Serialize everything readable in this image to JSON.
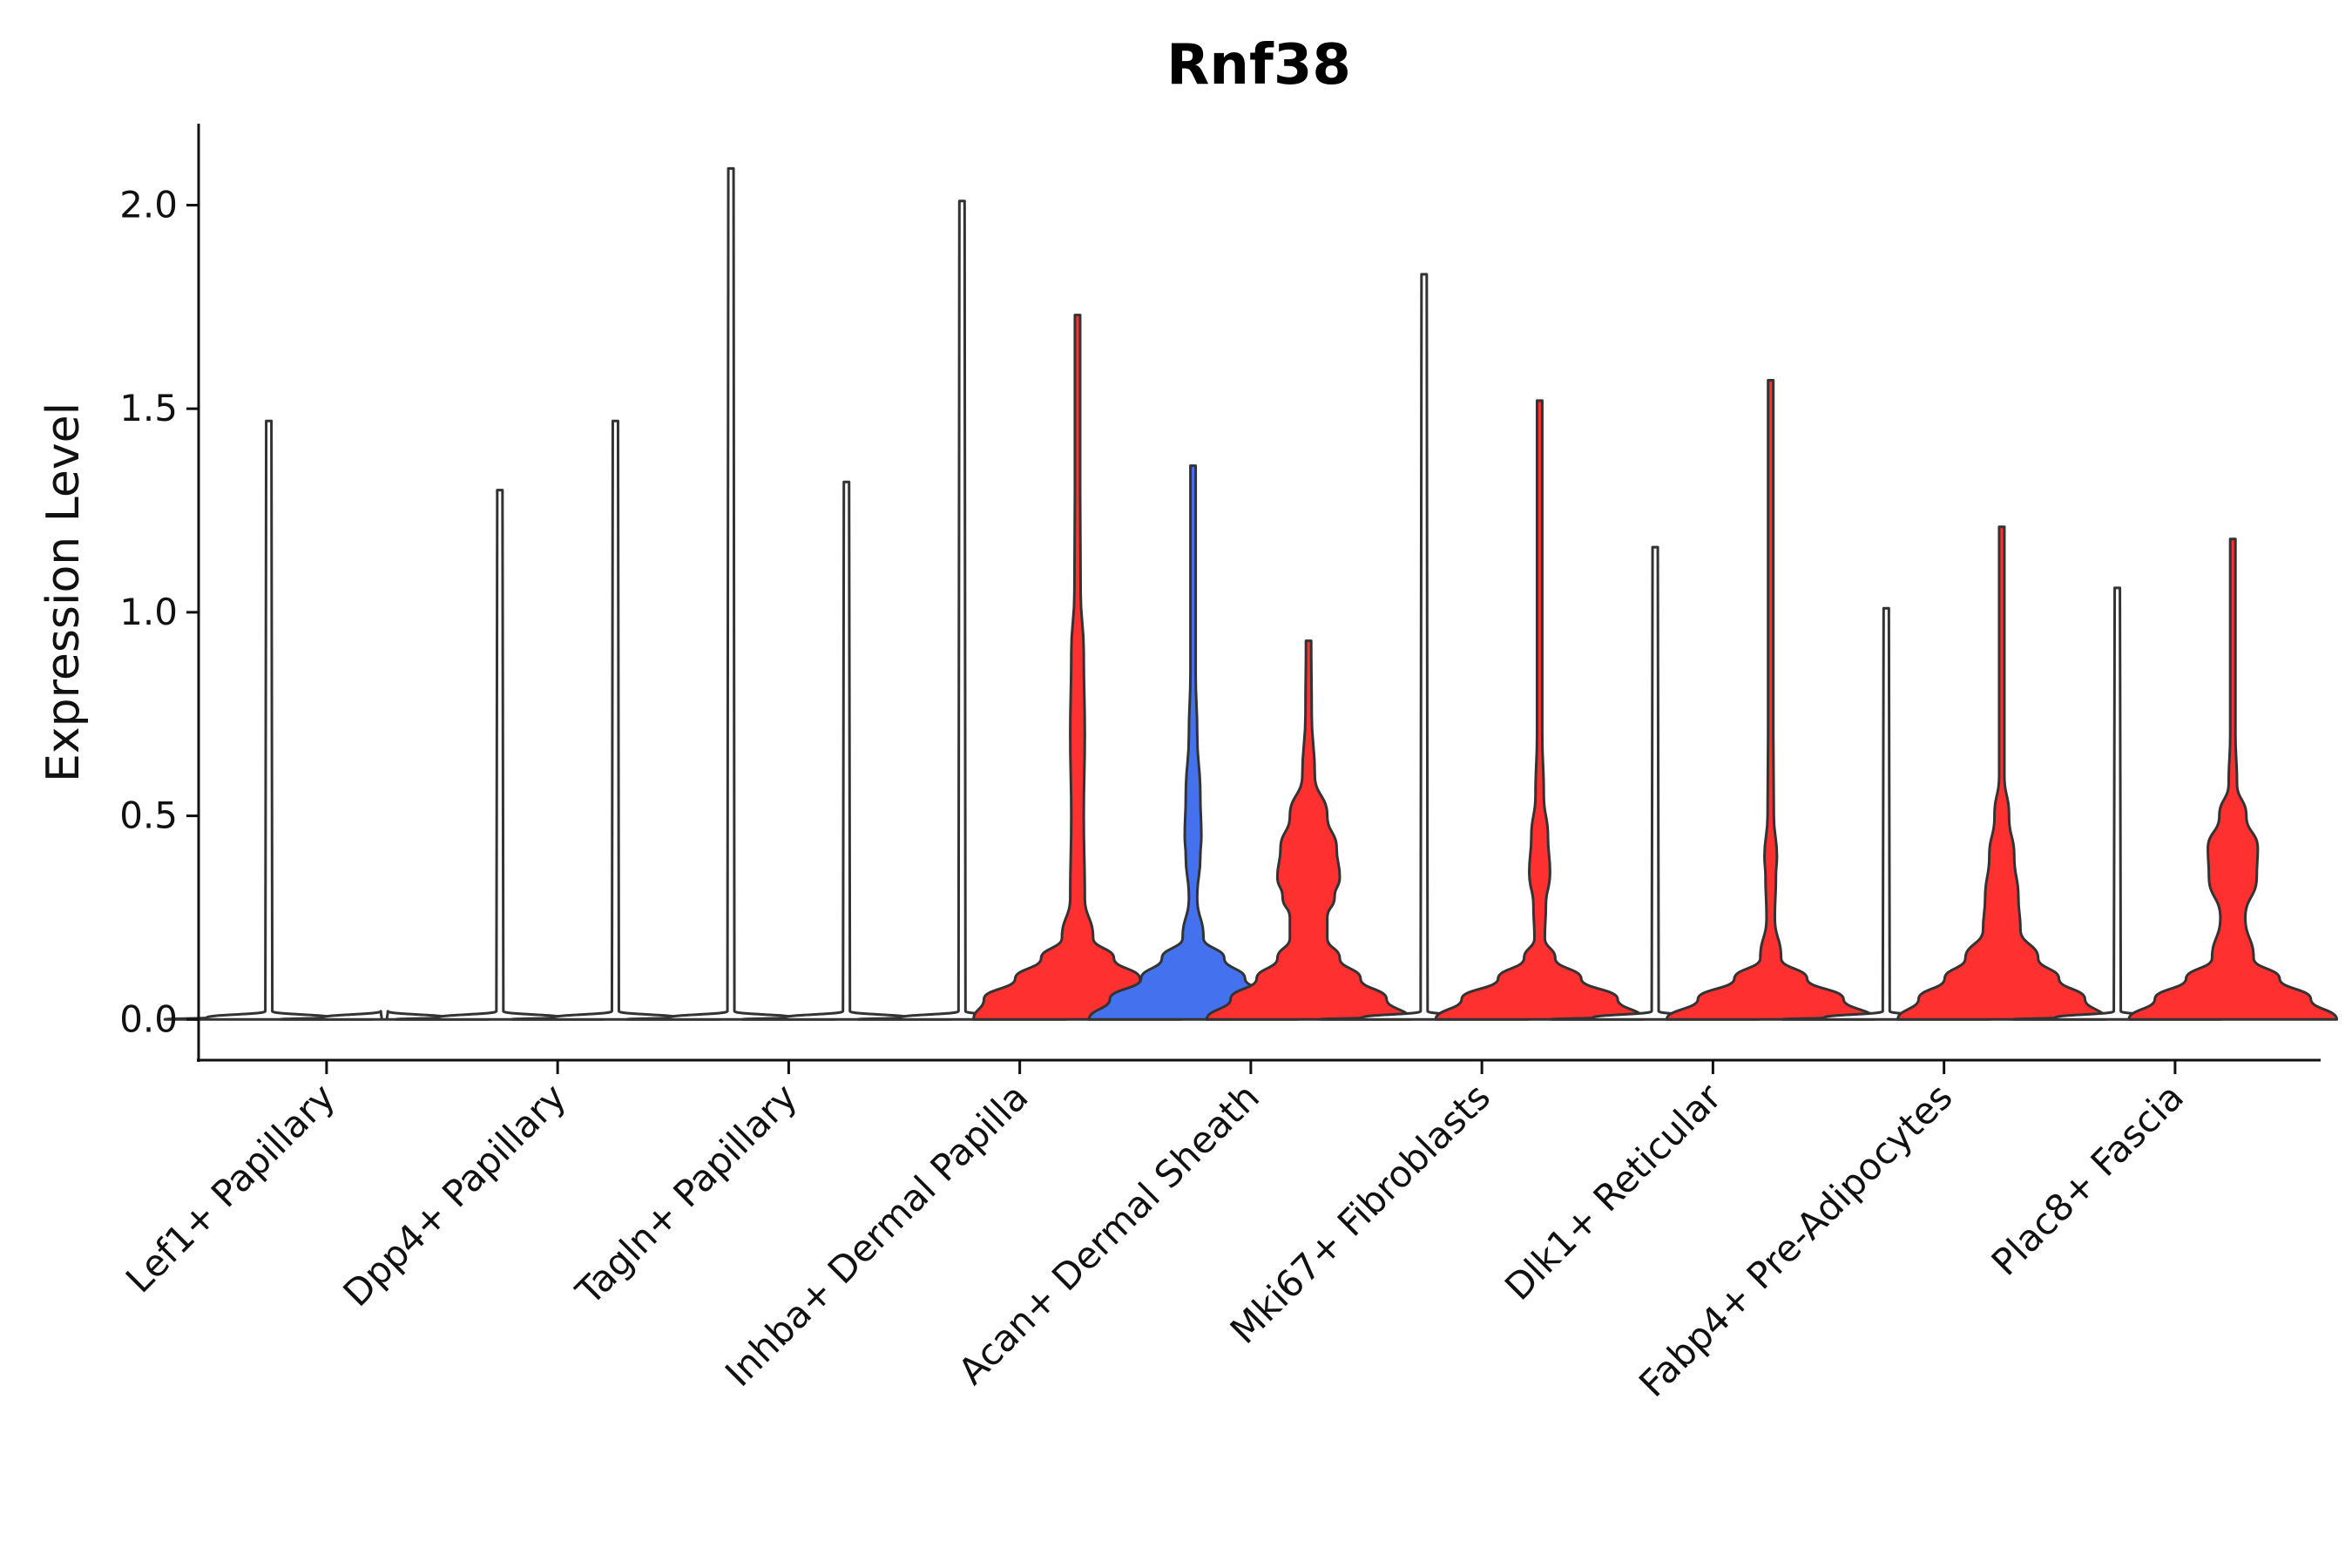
{
  "chart_data": {
    "type": "violin",
    "title": "Rnf38",
    "xlabel": "",
    "ylabel": "Expression Level",
    "ylim": [
      -0.1,
      2.2
    ],
    "yticks": [
      0.0,
      0.5,
      1.0,
      1.5,
      2.0
    ],
    "ytick_labels": [
      "0.0",
      "0.5",
      "1.0",
      "1.5",
      "2.0"
    ],
    "split_colors": {
      "left": "#4472ee",
      "right": "#ff3030",
      "none": "#ffffff"
    },
    "categories": [
      {
        "label": "Lef1+ Papillary",
        "left": {
          "max": 1.47,
          "fill": "none"
        },
        "right": {
          "max": 0.0,
          "fill": "none"
        }
      },
      {
        "label": "Dpp4+ Papillary",
        "left": {
          "max": 1.3,
          "fill": "none"
        },
        "right": {
          "max": 1.47,
          "fill": "none"
        }
      },
      {
        "label": "Tagln+ Papillary",
        "left": {
          "max": 2.09,
          "fill": "none"
        },
        "right": {
          "max": 1.32,
          "fill": "none"
        }
      },
      {
        "label": "Inhba+ Dermal Papilla",
        "left": {
          "max": 2.01,
          "fill": "none"
        },
        "right": {
          "max": 1.73,
          "fill": "right",
          "profile": [
            [
              0,
              1.0
            ],
            [
              0.05,
              0.9
            ],
            [
              0.1,
              0.6
            ],
            [
              0.15,
              0.35
            ],
            [
              0.2,
              0.15
            ],
            [
              0.3,
              0.07
            ],
            [
              0.5,
              0.06
            ],
            [
              0.7,
              0.07
            ],
            [
              0.9,
              0.06
            ],
            [
              1.05,
              0.03
            ],
            [
              1.3,
              0.01
            ],
            [
              1.73,
              0.005
            ]
          ]
        }
      },
      {
        "label": "Acan+ Dermal Sheath",
        "left": {
          "max": 1.36,
          "fill": "left",
          "profile": [
            [
              0,
              1.0
            ],
            [
              0.05,
              0.8
            ],
            [
              0.1,
              0.5
            ],
            [
              0.15,
              0.3
            ],
            [
              0.2,
              0.1
            ],
            [
              0.3,
              0.04
            ],
            [
              0.4,
              0.07
            ],
            [
              0.45,
              0.08
            ],
            [
              0.55,
              0.07
            ],
            [
              0.7,
              0.04
            ],
            [
              0.85,
              0.02
            ],
            [
              1.0,
              0.01
            ],
            [
              1.36,
              0.005
            ]
          ]
        },
        "right": {
          "max": 0.93,
          "fill": "right",
          "profile": [
            [
              0,
              0.98
            ],
            [
              0.05,
              0.75
            ],
            [
              0.1,
              0.5
            ],
            [
              0.15,
              0.3
            ],
            [
              0.2,
              0.18
            ],
            [
              0.25,
              0.18
            ],
            [
              0.3,
              0.25
            ],
            [
              0.35,
              0.3
            ],
            [
              0.42,
              0.27
            ],
            [
              0.5,
              0.18
            ],
            [
              0.6,
              0.06
            ],
            [
              0.75,
              0.03
            ],
            [
              0.93,
              0.02
            ]
          ]
        }
      },
      {
        "label": "Mki67+ Fibroblasts",
        "left": {
          "max": 1.83,
          "fill": "none"
        },
        "right": {
          "max": 1.52,
          "fill": "right",
          "profile": [
            [
              0,
              1.0
            ],
            [
              0.05,
              0.75
            ],
            [
              0.1,
              0.4
            ],
            [
              0.15,
              0.15
            ],
            [
              0.2,
              0.05
            ],
            [
              0.28,
              0.06
            ],
            [
              0.36,
              0.1
            ],
            [
              0.45,
              0.08
            ],
            [
              0.55,
              0.04
            ],
            [
              0.7,
              0.02
            ],
            [
              1.0,
              0.01
            ],
            [
              1.52,
              0.005
            ]
          ]
        }
      },
      {
        "label": "Dlk1+ Reticular",
        "left": {
          "max": 1.16,
          "fill": "none"
        },
        "right": {
          "max": 1.57,
          "fill": "right",
          "profile": [
            [
              0,
              1.0
            ],
            [
              0.05,
              0.7
            ],
            [
              0.1,
              0.35
            ],
            [
              0.15,
              0.1
            ],
            [
              0.25,
              0.04
            ],
            [
              0.35,
              0.05
            ],
            [
              0.4,
              0.06
            ],
            [
              0.5,
              0.03
            ],
            [
              0.7,
              0.02
            ],
            [
              1.0,
              0.01
            ],
            [
              1.57,
              0.005
            ]
          ]
        }
      },
      {
        "label": "Fabp4+ Pre-Adipocytes",
        "left": {
          "max": 1.01,
          "fill": "none"
        },
        "right": {
          "max": 1.21,
          "fill": "right",
          "profile": [
            [
              0,
              1.0
            ],
            [
              0.05,
              0.8
            ],
            [
              0.1,
              0.55
            ],
            [
              0.15,
              0.35
            ],
            [
              0.22,
              0.18
            ],
            [
              0.3,
              0.16
            ],
            [
              0.4,
              0.12
            ],
            [
              0.5,
              0.07
            ],
            [
              0.6,
              0.02
            ],
            [
              0.8,
              0.01
            ],
            [
              1.21,
              0.005
            ]
          ]
        }
      },
      {
        "label": "Plac8+ Fascia",
        "left": {
          "max": 1.06,
          "fill": "none"
        },
        "right": {
          "max": 1.18,
          "fill": "right",
          "profile": [
            [
              0,
              1.0
            ],
            [
              0.05,
              0.75
            ],
            [
              0.1,
              0.45
            ],
            [
              0.15,
              0.2
            ],
            [
              0.25,
              0.12
            ],
            [
              0.35,
              0.23
            ],
            [
              0.42,
              0.24
            ],
            [
              0.5,
              0.13
            ],
            [
              0.58,
              0.04
            ],
            [
              0.7,
              0.02
            ],
            [
              1.0,
              0.01
            ],
            [
              1.18,
              0.005
            ]
          ]
        }
      }
    ]
  }
}
